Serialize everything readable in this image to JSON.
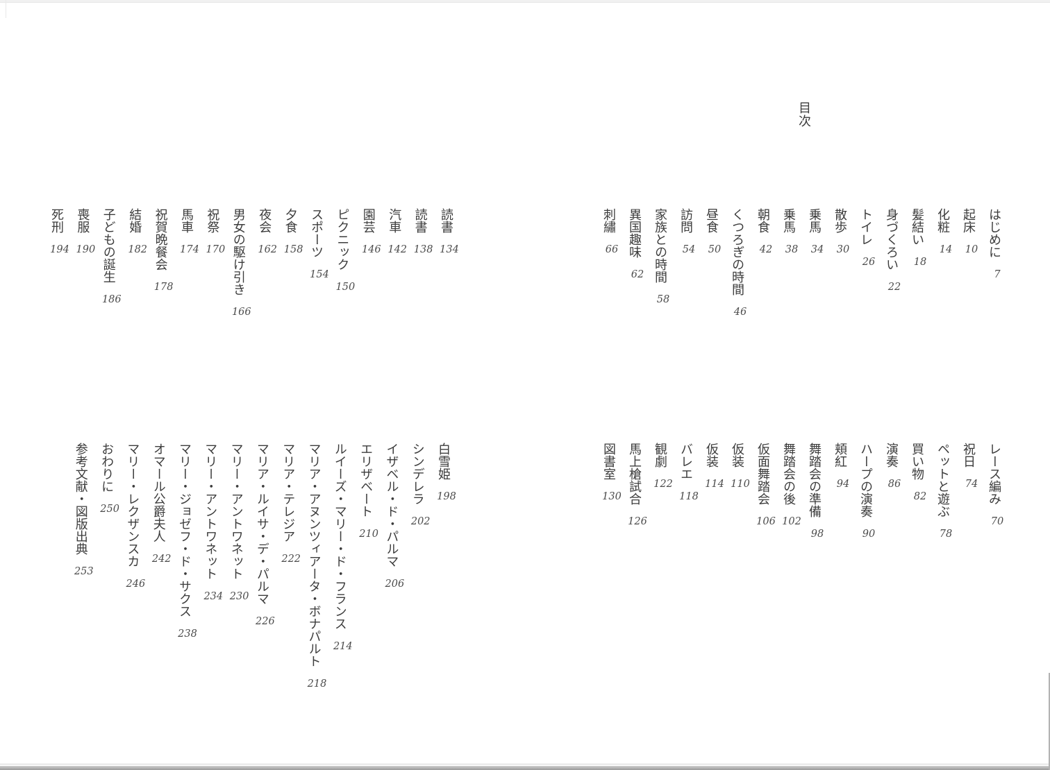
{
  "title": "目次",
  "toc": {
    "part1": [
      {
        "label": "はじめに",
        "page": "7"
      },
      {
        "label": "起床",
        "page": "10"
      },
      {
        "label": "化粧",
        "page": "14"
      },
      {
        "label": "髪結い",
        "page": "18"
      },
      {
        "label": "身づくろい",
        "page": "22"
      },
      {
        "label": "トイレ",
        "page": "26"
      },
      {
        "label": "散歩",
        "page": "30"
      },
      {
        "label": "乗馬",
        "page": "34"
      },
      {
        "label": "乗馬",
        "page": "38"
      },
      {
        "label": "朝食",
        "page": "42"
      },
      {
        "label": "くつろぎの時間",
        "page": "46"
      },
      {
        "label": "昼食",
        "page": "50"
      },
      {
        "label": "訪問",
        "page": "54"
      },
      {
        "label": "家族との時間",
        "page": "58"
      },
      {
        "label": "異国趣味",
        "page": "62"
      },
      {
        "label": "刺繡",
        "page": "66"
      }
    ],
    "part2": [
      {
        "label": "レース編み",
        "page": "70"
      },
      {
        "label": "祝日",
        "page": "74"
      },
      {
        "label": "ペットと遊ぶ",
        "page": "78"
      },
      {
        "label": "買い物",
        "page": "82"
      },
      {
        "label": "演奏",
        "page": "86"
      },
      {
        "label": "ハープの演奏",
        "page": "90"
      },
      {
        "label": "頬紅",
        "page": "94"
      },
      {
        "label": "舞踏会の準備",
        "page": "98"
      },
      {
        "label": "舞踏会の後",
        "page": "102"
      },
      {
        "label": "仮面舞踏会",
        "page": "106"
      },
      {
        "label": "仮装",
        "page": "110"
      },
      {
        "label": "仮装",
        "page": "114"
      },
      {
        "label": "バレエ",
        "page": "118"
      },
      {
        "label": "観劇",
        "page": "122"
      },
      {
        "label": "馬上槍試合",
        "page": "126"
      },
      {
        "label": "図書室",
        "page": "130"
      }
    ],
    "part3": [
      {
        "label": "読書",
        "page": "134"
      },
      {
        "label": "読書",
        "page": "138"
      },
      {
        "label": "汽車",
        "page": "142"
      },
      {
        "label": "園芸",
        "page": "146"
      },
      {
        "label": "ピクニック",
        "page": "150"
      },
      {
        "label": "スポーツ",
        "page": "154"
      },
      {
        "label": "夕食",
        "page": "158"
      },
      {
        "label": "夜会",
        "page": "162"
      },
      {
        "label": "男女の駆け引き",
        "page": "166"
      },
      {
        "label": "祝祭",
        "page": "170"
      },
      {
        "label": "馬車",
        "page": "174"
      },
      {
        "label": "祝賀晩餐会",
        "page": "178"
      },
      {
        "label": "結婚",
        "page": "182"
      },
      {
        "label": "子どもの誕生",
        "page": "186"
      },
      {
        "label": "喪服",
        "page": "190"
      },
      {
        "label": "死刑",
        "page": "194"
      }
    ],
    "part4": [
      {
        "label": "白雪姫",
        "page": "198"
      },
      {
        "label": "シンデレラ",
        "page": "202"
      },
      {
        "label": "イザベル・ド・パルマ",
        "page": "206"
      },
      {
        "label": "エリザベート",
        "page": "210"
      },
      {
        "label": "ルイーズ・マリー・ド・フランス",
        "page": "214"
      },
      {
        "label": "マリア・アヌンツィアータ・ボナパルト",
        "page": "218"
      },
      {
        "label": "マリア・テレジア",
        "page": "222"
      },
      {
        "label": "マリア・ルイサ・デ・パルマ",
        "page": "226"
      },
      {
        "label": "マリー・アントワネット",
        "page": "230"
      },
      {
        "label": "マリー・アントワネット",
        "page": "234"
      },
      {
        "label": "マリー・ジョゼフ・ド・サクス",
        "page": "238"
      },
      {
        "label": "オマール公爵夫人",
        "page": "242"
      },
      {
        "label": "マリー・レクザンスカ",
        "page": "246"
      },
      {
        "label": "おわりに",
        "page": "250"
      },
      {
        "label": "参考文献・図版出典",
        "page": "253"
      }
    ]
  }
}
